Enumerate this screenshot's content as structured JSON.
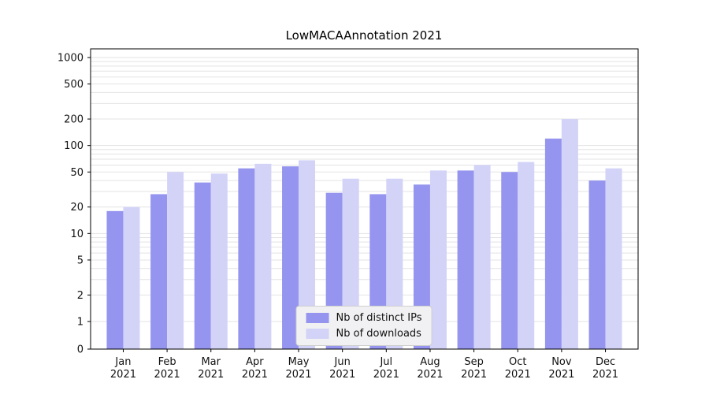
{
  "chart_data": {
    "type": "bar",
    "title": "LowMACAAnnotation 2021",
    "scale": "symlog",
    "grid": true,
    "legend_position": "lower center",
    "year": "2021",
    "categories": [
      "Jan",
      "Feb",
      "Mar",
      "Apr",
      "May",
      "Jun",
      "Jul",
      "Aug",
      "Sep",
      "Oct",
      "Nov",
      "Dec"
    ],
    "yticks": [
      0,
      1,
      2,
      5,
      10,
      20,
      50,
      100,
      200,
      500,
      1000
    ],
    "ylim": [
      0,
      1300
    ],
    "series": [
      {
        "name": "Nb of distinct IPs",
        "color": "#9595ef",
        "values": [
          18,
          28,
          38,
          55,
          58,
          29,
          28,
          36,
          52,
          50,
          120,
          40
        ]
      },
      {
        "name": "Nb of downloads",
        "color": "#d3d3f8",
        "values": [
          20,
          50,
          48,
          62,
          68,
          42,
          42,
          52,
          60,
          65,
          200,
          55
        ]
      }
    ]
  },
  "colors": {
    "grid": "#e3e3e3",
    "axis": "#000000",
    "legend_bg": "#f1f1f3",
    "legend_border": "#cfcfcf"
  }
}
